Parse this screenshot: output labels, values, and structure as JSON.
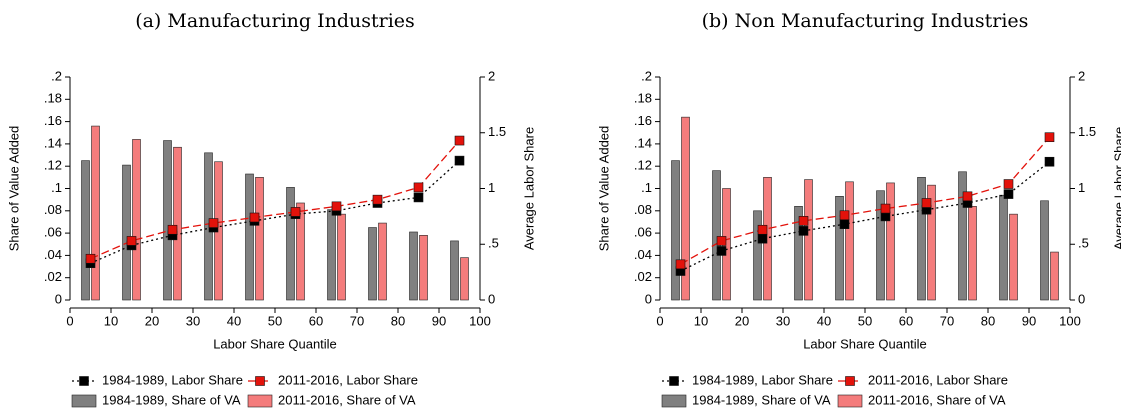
{
  "chart_data": [
    {
      "type": "combo",
      "title": "(a) Manufacturing Industries",
      "xlabel": "Labor Share Quantile",
      "ylabel": "Share of Value Added",
      "y2label": "Average Labor Share",
      "x": [
        5,
        15,
        25,
        35,
        45,
        55,
        65,
        75,
        85,
        95
      ],
      "xlim": [
        0,
        100
      ],
      "xticks": [
        0,
        10,
        20,
        30,
        40,
        50,
        60,
        70,
        80,
        90,
        100
      ],
      "ylim": [
        0,
        0.2
      ],
      "yticks": [
        0,
        {
          "value": 0.02,
          "label": ".02"
        },
        {
          "value": 0.04,
          "label": ".04"
        },
        {
          "value": 0.06,
          "label": ".06"
        },
        {
          "value": 0.08,
          "label": ".08"
        },
        {
          "value": 0.1,
          "label": ".1"
        },
        {
          "value": 0.12,
          "label": ".12"
        },
        {
          "value": 0.14,
          "label": ".14"
        },
        {
          "value": 0.16,
          "label": ".16"
        },
        {
          "value": 0.18,
          "label": ".18"
        },
        {
          "value": 0.2,
          "label": ".2"
        }
      ],
      "y2lim": [
        0,
        2
      ],
      "y2ticks": [
        0,
        {
          "value": 0.5,
          "label": ".5"
        },
        1,
        1.5,
        2
      ],
      "series": [
        {
          "name": "1984-1989, Labor Share",
          "kind": "line",
          "axis": "y2",
          "color": "#000000",
          "dash": "2,3",
          "values": [
            0.33,
            0.49,
            0.58,
            0.65,
            0.71,
            0.77,
            0.8,
            0.87,
            0.92,
            1.25
          ]
        },
        {
          "name": "2011-2016, Labor Share",
          "kind": "line",
          "axis": "y2",
          "color": "#e3120b",
          "dash": "8,4",
          "values": [
            0.37,
            0.53,
            0.63,
            0.69,
            0.74,
            0.79,
            0.84,
            0.9,
            1.01,
            1.43
          ]
        },
        {
          "name": "1984-1989, Share of VA",
          "kind": "bar",
          "color": "#808080",
          "values": [
            0.125,
            0.121,
            0.143,
            0.132,
            0.113,
            0.101,
            0.081,
            0.065,
            0.061,
            0.053
          ]
        },
        {
          "name": "2011-2016, Share of VA",
          "kind": "bar",
          "color": "#f47c7c",
          "values": [
            0.156,
            0.144,
            0.137,
            0.124,
            0.11,
            0.087,
            0.077,
            0.069,
            0.058,
            0.038
          ]
        }
      ]
    },
    {
      "type": "combo",
      "title": "(b) Non Manufacturing Industries",
      "xlabel": "Labor Share Quantile",
      "ylabel": "Share of Value Added",
      "y2label": "Average Labor Share",
      "x": [
        5,
        15,
        25,
        35,
        45,
        55,
        65,
        75,
        85,
        95
      ],
      "xlim": [
        0,
        100
      ],
      "xticks": [
        0,
        10,
        20,
        30,
        40,
        50,
        60,
        70,
        80,
        90,
        100
      ],
      "ylim": [
        0,
        0.2
      ],
      "yticks": [
        0,
        {
          "value": 0.02,
          "label": ".02"
        },
        {
          "value": 0.04,
          "label": ".04"
        },
        {
          "value": 0.06,
          "label": ".06"
        },
        {
          "value": 0.08,
          "label": ".08"
        },
        {
          "value": 0.1,
          "label": ".1"
        },
        {
          "value": 0.12,
          "label": ".12"
        },
        {
          "value": 0.14,
          "label": ".14"
        },
        {
          "value": 0.16,
          "label": ".16"
        },
        {
          "value": 0.18,
          "label": ".18"
        },
        {
          "value": 0.2,
          "label": ".2"
        }
      ],
      "y2lim": [
        0,
        2
      ],
      "y2ticks": [
        0,
        {
          "value": 0.5,
          "label": ".5"
        },
        1,
        1.5,
        2
      ],
      "series": [
        {
          "name": "1984-1989, Labor Share",
          "kind": "line",
          "axis": "y2",
          "color": "#000000",
          "dash": "2,3",
          "values": [
            0.26,
            0.44,
            0.55,
            0.62,
            0.68,
            0.75,
            0.81,
            0.87,
            0.95,
            1.24
          ]
        },
        {
          "name": "2011-2016, Labor Share",
          "kind": "line",
          "axis": "y2",
          "color": "#e3120b",
          "dash": "8,4",
          "values": [
            0.32,
            0.53,
            0.63,
            0.71,
            0.76,
            0.82,
            0.87,
            0.93,
            1.04,
            1.46
          ]
        },
        {
          "name": "1984-1989, Share of VA",
          "kind": "bar",
          "color": "#808080",
          "values": [
            0.125,
            0.116,
            0.08,
            0.084,
            0.093,
            0.098,
            0.11,
            0.115,
            0.094,
            0.089
          ]
        },
        {
          "name": "2011-2016, Share of VA",
          "kind": "bar",
          "color": "#f47c7c",
          "values": [
            0.164,
            0.1,
            0.11,
            0.108,
            0.106,
            0.105,
            0.103,
            0.084,
            0.077,
            0.043
          ]
        }
      ]
    }
  ]
}
